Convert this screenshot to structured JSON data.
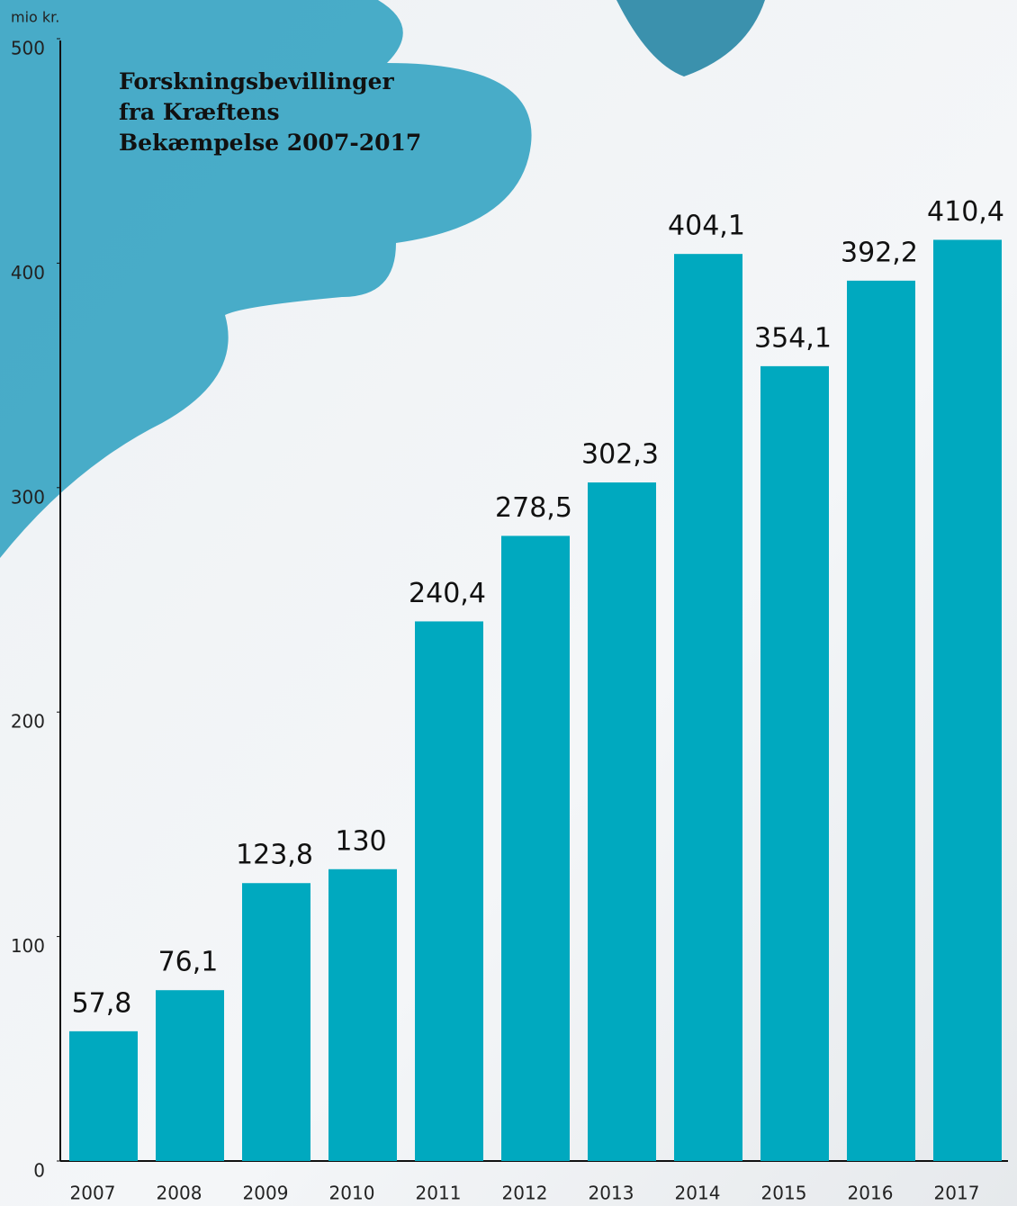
{
  "chart_data": {
    "type": "bar",
    "title": "Forskningsbevillinger fra Kræftens Bekæmpelse 2007-2017",
    "y_label": "mio kr.",
    "categories": [
      "2007",
      "2008",
      "2009",
      "2010",
      "2011",
      "2012",
      "2013",
      "2014",
      "2015",
      "2016",
      "2017"
    ],
    "values": [
      57.8,
      76.1,
      123.8,
      130,
      240.4,
      278.5,
      302.3,
      404.1,
      354.1,
      392.2,
      410.4
    ],
    "value_labels": [
      "57,8",
      "76,1",
      "123,8",
      "130",
      "240,4",
      "278,5",
      "302,3",
      "404,1",
      "354,1",
      "392,2",
      "410,4"
    ],
    "color": "#00a9bf",
    "ylim": [
      0,
      500
    ],
    "yticks": [
      0,
      100,
      200,
      300,
      400,
      500
    ],
    "grid": false
  }
}
